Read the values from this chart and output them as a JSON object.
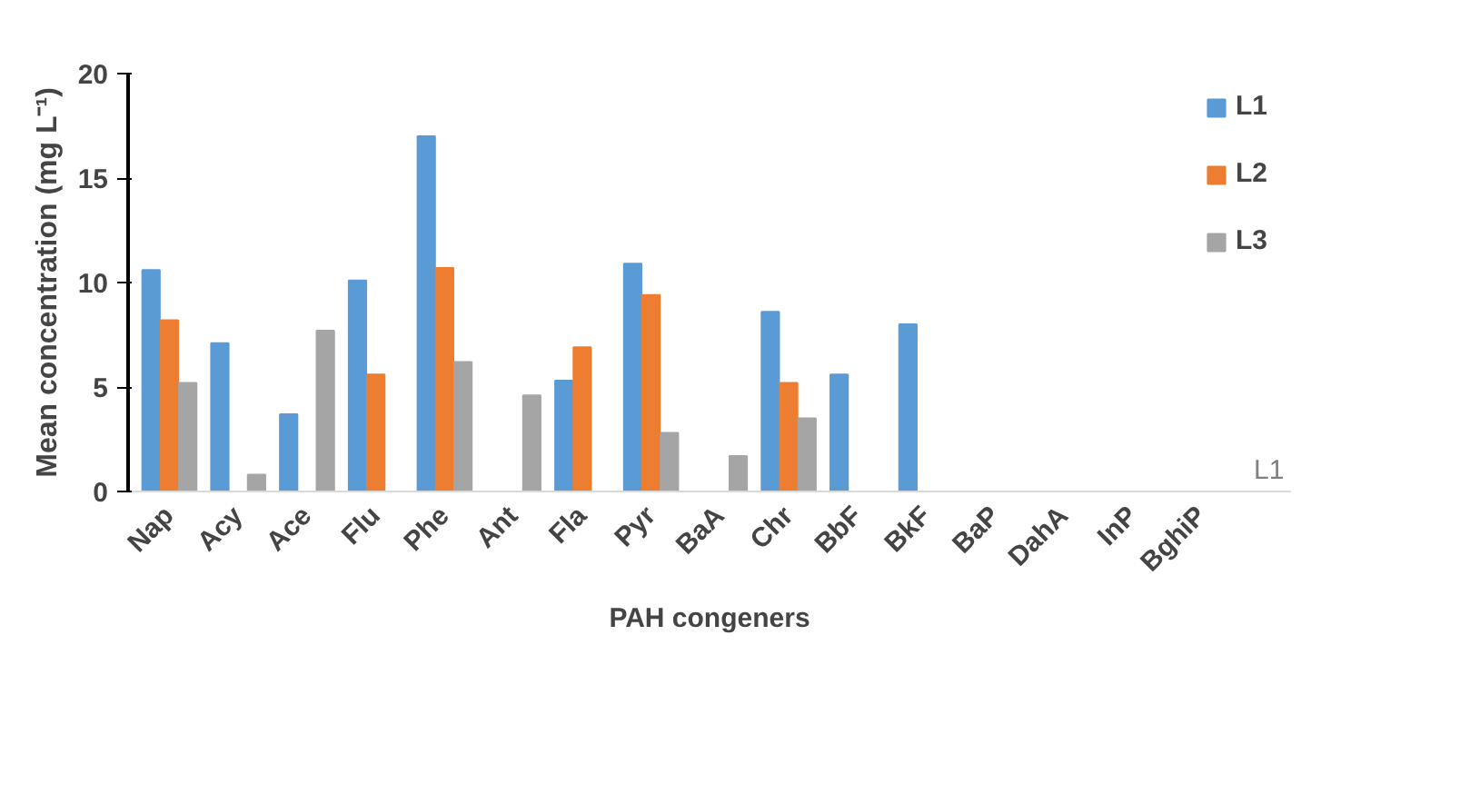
{
  "chart_data": {
    "type": "bar",
    "xlabel": "PAH congeners",
    "ylabel": "Mean concentration (mg L⁻¹)",
    "categories": [
      "Nap",
      "Acy",
      "Ace",
      "Flu",
      "Phe",
      "Ant",
      "Fla",
      "Pyr",
      "BaA",
      "Chr",
      "BbF",
      "BkF",
      "BaP",
      "DahA",
      "InP",
      "BghiP"
    ],
    "series": [
      {
        "name": "L1",
        "color": "#5b9bd5",
        "values": [
          10.6,
          7.1,
          3.7,
          10.1,
          17.0,
          0,
          5.3,
          10.9,
          0,
          8.6,
          5.6,
          8.0,
          0,
          0,
          0,
          0
        ]
      },
      {
        "name": "L2",
        "color": "#ed7d31",
        "values": [
          8.2,
          0,
          0,
          5.6,
          10.7,
          0,
          6.9,
          9.4,
          0,
          5.2,
          0,
          0,
          0,
          0,
          0,
          0
        ]
      },
      {
        "name": "L3",
        "color": "#a5a5a5",
        "values": [
          5.2,
          0.8,
          7.7,
          0,
          6.2,
          4.6,
          0,
          2.8,
          1.7,
          3.5,
          0,
          0,
          0,
          0,
          0,
          0
        ]
      }
    ],
    "ylim": [
      0,
      20
    ],
    "yticks": [
      0,
      5,
      10,
      15,
      20
    ],
    "grid": false,
    "legend": "top right",
    "annotations": [
      "L1"
    ]
  }
}
